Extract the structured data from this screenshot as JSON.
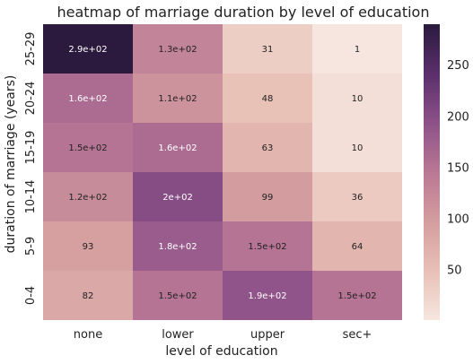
{
  "chart_data": {
    "type": "heatmap",
    "title": "heatmap of marriage duration by level of education",
    "xlabel": "level of education",
    "ylabel": "duration of marriage (years)",
    "x_categories": [
      "none",
      "lower",
      "upper",
      "sec+"
    ],
    "y_categories": [
      "25-29",
      "20-24",
      "15-19",
      "10-14",
      "5-9",
      "0-4"
    ],
    "values": [
      [
        290,
        130,
        31,
        1
      ],
      [
        160,
        110,
        48,
        10
      ],
      [
        150,
        160,
        63,
        10
      ],
      [
        120,
        200,
        99,
        36
      ],
      [
        93,
        180,
        150,
        64
      ],
      [
        82,
        150,
        190,
        150
      ]
    ],
    "cell_labels": [
      [
        "2.9e+02",
        "1.3e+02",
        "31",
        "1"
      ],
      [
        "1.6e+02",
        "1.1e+02",
        "48",
        "10"
      ],
      [
        "1.5e+02",
        "1.6e+02",
        "63",
        "10"
      ],
      [
        "1.2e+02",
        "2e+02",
        "99",
        "36"
      ],
      [
        "93",
        "1.8e+02",
        "1.5e+02",
        "64"
      ],
      [
        "82",
        "1.5e+02",
        "1.9e+02",
        "1.5e+02"
      ]
    ],
    "colorbar": {
      "min": 1,
      "max": 290,
      "ticks": [
        50,
        100,
        150,
        200,
        250
      ],
      "colors": [
        "#f6e6df",
        "#e8c0b6",
        "#d49d9f",
        "#b97894",
        "#8d5189",
        "#5a2f6b",
        "#2b1a3e"
      ]
    },
    "grid": false,
    "legend": "colorbar-right"
  }
}
